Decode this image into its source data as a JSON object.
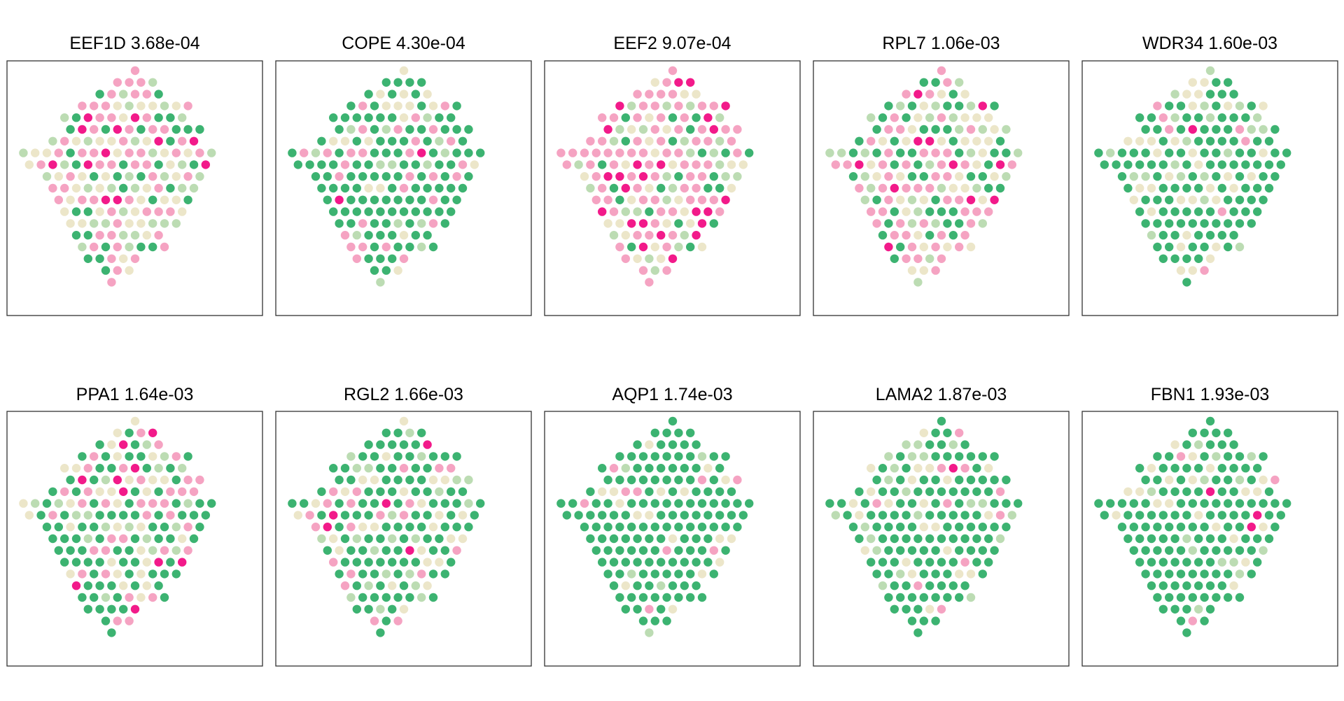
{
  "chart_data": [
    {
      "type": "scatter",
      "title": "EEF1D 3.68e-04",
      "pattern_seed": 11,
      "pink_weight": 0.38,
      "light_weight": 0.37
    },
    {
      "type": "scatter",
      "title": "COPE 4.30e-04",
      "pattern_seed": 23,
      "pink_weight": 0.14,
      "light_weight": 0.22
    },
    {
      "type": "scatter",
      "title": "EEF2 9.07e-04",
      "pattern_seed": 37,
      "pink_weight": 0.55,
      "light_weight": 0.33
    },
    {
      "type": "scatter",
      "title": "RPL7 1.06e-03",
      "pattern_seed": 41,
      "pink_weight": 0.34,
      "light_weight": 0.38
    },
    {
      "type": "scatter",
      "title": "WDR34 1.60e-03",
      "pattern_seed": 53,
      "pink_weight": 0.08,
      "light_weight": 0.22
    },
    {
      "type": "scatter",
      "title": "PPA1 1.64e-03",
      "pattern_seed": 67,
      "pink_weight": 0.22,
      "light_weight": 0.3
    },
    {
      "type": "scatter",
      "title": "RGL2 1.66e-03",
      "pattern_seed": 71,
      "pink_weight": 0.14,
      "light_weight": 0.28
    },
    {
      "type": "scatter",
      "title": "AQP1 1.74e-03",
      "pattern_seed": 83,
      "pink_weight": 0.04,
      "light_weight": 0.16
    },
    {
      "type": "scatter",
      "title": "LAMA2 1.87e-03",
      "pattern_seed": 97,
      "pink_weight": 0.05,
      "light_weight": 0.18
    },
    {
      "type": "scatter",
      "title": "FBN1 1.93e-03",
      "pattern_seed": 101,
      "pink_weight": 0.06,
      "light_weight": 0.16
    }
  ],
  "colors": {
    "low": "#3cb371",
    "low_mid": "#bcdcb3",
    "mid": "#ece6c9",
    "high_mid": "#f5a3c2",
    "high": "#f21a8a",
    "frame": "#333333",
    "background": "#ffffff"
  }
}
